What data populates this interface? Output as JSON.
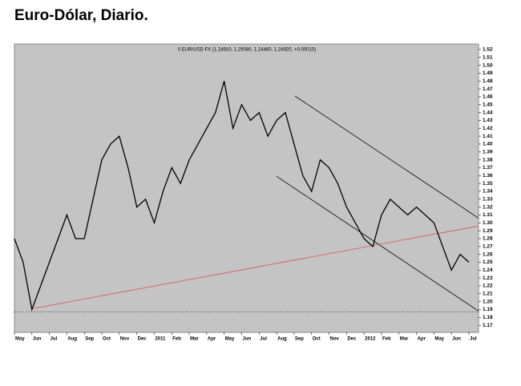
{
  "chart_data": {
    "type": "line",
    "title": "Euro-Dólar, Diario.",
    "legend_text": "0 EUR/USD FX (1.24910, 1.25080, 1.24460, 1.24920, +0.00010)",
    "xlim": [
      0,
      26.55
    ],
    "ylim": [
      1.161,
      1.527
    ],
    "xticks": [
      {
        "value": 0,
        "label": "May"
      },
      {
        "value": 1,
        "label": "Jun"
      },
      {
        "value": 2,
        "label": "Jul"
      },
      {
        "value": 3,
        "label": "Aug"
      },
      {
        "value": 4,
        "label": "Sep"
      },
      {
        "value": 5,
        "label": "Oct"
      },
      {
        "value": 6,
        "label": "Nov"
      },
      {
        "value": 7,
        "label": "Dec"
      },
      {
        "value": 8,
        "label": "2011"
      },
      {
        "value": 9,
        "label": "Feb"
      },
      {
        "value": 10,
        "label": "Mar"
      },
      {
        "value": 11,
        "label": "Apr"
      },
      {
        "value": 12,
        "label": "May"
      },
      {
        "value": 13,
        "label": "Jun"
      },
      {
        "value": 14,
        "label": "Jul"
      },
      {
        "value": 15,
        "label": "Aug"
      },
      {
        "value": 16,
        "label": "Sep"
      },
      {
        "value": 17,
        "label": "Oct"
      },
      {
        "value": 18,
        "label": "Nov"
      },
      {
        "value": 19,
        "label": "Dec"
      },
      {
        "value": 20,
        "label": "2012"
      },
      {
        "value": 21,
        "label": "Feb"
      },
      {
        "value": 22,
        "label": "Mar"
      },
      {
        "value": 23,
        "label": "Apr"
      },
      {
        "value": 24,
        "label": "May"
      },
      {
        "value": 25,
        "label": "Jun"
      },
      {
        "value": 26,
        "label": "Jul"
      }
    ],
    "yticks": [
      1.17,
      1.18,
      1.19,
      {
        "value": 1.2,
        "label": "1.20"
      },
      1.21,
      1.22,
      1.23,
      1.24,
      1.25,
      1.26,
      1.27,
      1.28,
      1.29,
      {
        "value": 1.3,
        "label": "1.30"
      },
      1.31,
      1.32,
      1.33,
      1.34,
      1.35,
      1.36,
      1.37,
      1.38,
      1.39,
      {
        "value": 1.4,
        "label": "1.40"
      },
      1.41,
      1.42,
      1.43,
      1.44,
      1.45,
      1.46,
      1.47,
      1.48,
      1.49,
      {
        "value": 1.5,
        "label": "1.50"
      },
      1.51,
      1.52
    ],
    "series": [
      {
        "color": "#000000",
        "x": [
          0,
          0.5,
          1,
          1.5,
          2,
          2.5,
          3,
          3.5,
          4,
          4.5,
          5,
          5.5,
          6,
          6.5,
          7,
          7.5,
          8,
          8.5,
          9,
          9.5,
          10,
          10.5,
          11,
          11.5,
          12,
          12.5,
          13,
          13.5,
          14,
          14.5,
          15,
          15.5,
          16,
          16.5,
          17,
          17.5,
          18,
          18.5,
          19,
          19.5,
          20,
          20.5,
          21,
          21.5,
          22,
          22.5,
          23,
          23.5,
          24,
          24.5,
          25,
          25.5,
          26
        ],
        "values": [
          1.28,
          1.25,
          1.19,
          1.22,
          1.25,
          1.28,
          1.31,
          1.28,
          1.28,
          1.33,
          1.38,
          1.4,
          1.41,
          1.37,
          1.32,
          1.33,
          1.3,
          1.34,
          1.37,
          1.35,
          1.38,
          1.4,
          1.42,
          1.44,
          1.48,
          1.42,
          1.45,
          1.43,
          1.44,
          1.41,
          1.43,
          1.44,
          1.4,
          1.36,
          1.34,
          1.38,
          1.37,
          1.35,
          1.32,
          1.3,
          1.28,
          1.27,
          1.31,
          1.33,
          1.32,
          1.31,
          1.32,
          1.31,
          1.3,
          1.27,
          1.24,
          1.26,
          1.25
        ]
      }
    ],
    "lines": [
      {
        "color": "#000000",
        "x": [
          16.05,
          26.55
        ],
        "values": [
          1.461,
          1.306
        ]
      },
      {
        "color": "#000000",
        "x": [
          15.0,
          26.55
        ],
        "values": [
          1.359,
          1.188
        ]
      },
      {
        "color": "#e05050",
        "x": [
          1.0,
          26.55
        ],
        "values": [
          1.191,
          1.296
        ]
      },
      {
        "color": "#333333",
        "dashed": true,
        "x": [
          0,
          26.55
        ],
        "values": [
          1.187,
          1.187
        ]
      }
    ]
  }
}
